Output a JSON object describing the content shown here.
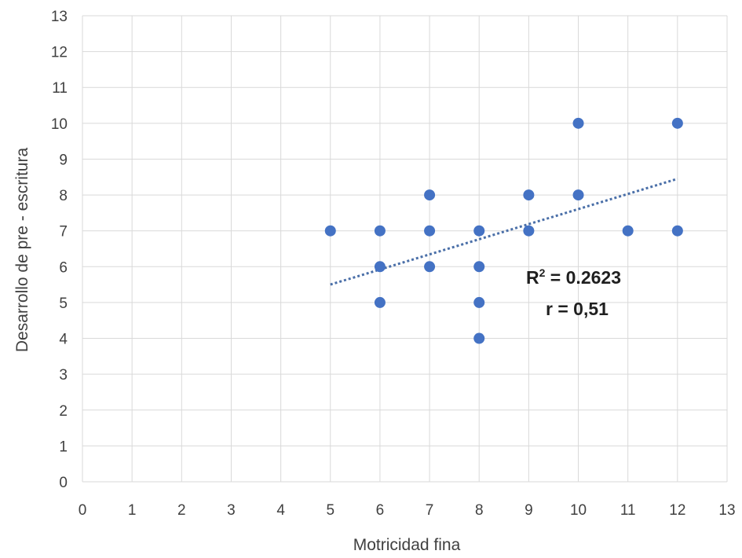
{
  "chart_data": {
    "type": "scatter",
    "xlabel": "Motricidad fina",
    "ylabel": "Desarrollo de pre - escritura",
    "xlim": [
      0,
      13
    ],
    "ylim": [
      0,
      13
    ],
    "x_ticks": [
      0,
      1,
      2,
      3,
      4,
      5,
      6,
      7,
      8,
      9,
      10,
      11,
      12,
      13
    ],
    "y_ticks": [
      0,
      1,
      2,
      3,
      4,
      5,
      6,
      7,
      8,
      9,
      10,
      11,
      12,
      13
    ],
    "grid": true,
    "legend": "none",
    "color": "#4472c4",
    "points": [
      {
        "x": 5,
        "y": 7
      },
      {
        "x": 6,
        "y": 7
      },
      {
        "x": 6,
        "y": 6
      },
      {
        "x": 6,
        "y": 5
      },
      {
        "x": 7,
        "y": 8
      },
      {
        "x": 7,
        "y": 7
      },
      {
        "x": 7,
        "y": 6
      },
      {
        "x": 8,
        "y": 7
      },
      {
        "x": 8,
        "y": 6
      },
      {
        "x": 8,
        "y": 5
      },
      {
        "x": 8,
        "y": 4
      },
      {
        "x": 9,
        "y": 8
      },
      {
        "x": 9,
        "y": 7
      },
      {
        "x": 10,
        "y": 10
      },
      {
        "x": 10,
        "y": 8
      },
      {
        "x": 11,
        "y": 7
      },
      {
        "x": 12,
        "y": 10
      },
      {
        "x": 12,
        "y": 7
      }
    ],
    "trendline": {
      "x": [
        5,
        12
      ],
      "y": [
        5.5,
        8.45
      ],
      "style": "dotted"
    },
    "annotations": {
      "r_squared_prefix": "R",
      "r_squared_sup": "2",
      "r_squared_value": " = 0.2623",
      "r_text": "r = 0,51"
    }
  }
}
